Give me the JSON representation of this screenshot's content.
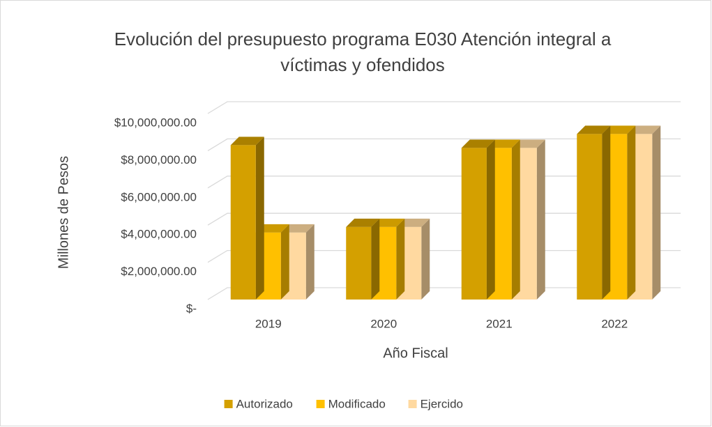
{
  "chart_data": {
    "type": "bar3d",
    "title": "Evolución del presupuesto programa E030 Atención integral a víctimas y ofendidos",
    "x_label": "Año Fiscal",
    "y_label": "Millones de Pesos",
    "categories": [
      "2019",
      "2020",
      "2021",
      "2022"
    ],
    "series": [
      {
        "name": "Autorizado",
        "color": "#d4a000",
        "values": [
          8300000,
          3900000,
          8150000,
          8900000
        ]
      },
      {
        "name": "Modificado",
        "color": "#ffc000",
        "values": [
          3600000,
          3900000,
          8150000,
          8900000
        ]
      },
      {
        "name": "Ejercido",
        "color": "#ffd9a0",
        "values": [
          3600000,
          3900000,
          8150000,
          8900000
        ]
      }
    ],
    "ylim": [
      0,
      10000000
    ],
    "yticks": [
      {
        "value": 0,
        "label": "$-"
      },
      {
        "value": 2000000,
        "label": "$2,000,000.00"
      },
      {
        "value": 4000000,
        "label": "$4,000,000.00"
      },
      {
        "value": 6000000,
        "label": "$6,000,000.00"
      },
      {
        "value": 8000000,
        "label": "$8,000,000.00"
      },
      {
        "value": 10000000,
        "label": "$10,000,000.00"
      }
    ],
    "grid": true,
    "legend": "bottom"
  }
}
